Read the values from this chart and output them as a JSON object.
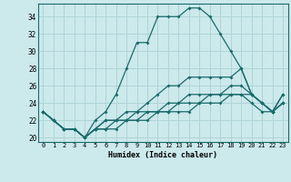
{
  "xlabel": "Humidex (Indice chaleur)",
  "background_color": "#cce9ec",
  "grid_color": "#afd4d8",
  "line_color": "#1a6b6b",
  "xlim": [
    -0.5,
    23.5
  ],
  "ylim": [
    19.5,
    35.5
  ],
  "yticks": [
    20,
    22,
    24,
    26,
    28,
    30,
    32,
    34
  ],
  "xticks": [
    0,
    1,
    2,
    3,
    4,
    5,
    6,
    7,
    8,
    9,
    10,
    11,
    12,
    13,
    14,
    15,
    16,
    17,
    18,
    19,
    20,
    21,
    22,
    23
  ],
  "lines": [
    [
      23,
      22,
      21,
      21,
      20,
      22,
      23,
      25,
      28,
      31,
      31,
      34,
      34,
      34,
      35,
      35,
      34,
      32,
      30,
      28,
      25,
      24,
      23,
      25
    ],
    [
      23,
      22,
      21,
      21,
      20,
      21,
      22,
      22,
      23,
      23,
      24,
      25,
      26,
      26,
      27,
      27,
      27,
      27,
      27,
      28,
      25,
      24,
      23,
      25
    ],
    [
      23,
      22,
      21,
      21,
      20,
      21,
      22,
      22,
      22,
      23,
      23,
      23,
      24,
      24,
      25,
      25,
      25,
      25,
      26,
      26,
      25,
      24,
      23,
      24
    ],
    [
      23,
      22,
      21,
      21,
      20,
      21,
      21,
      22,
      22,
      22,
      23,
      23,
      23,
      24,
      24,
      24,
      25,
      25,
      25,
      25,
      25,
      24,
      23,
      24
    ],
    [
      23,
      22,
      21,
      21,
      20,
      21,
      21,
      21,
      22,
      22,
      22,
      23,
      23,
      23,
      23,
      24,
      24,
      24,
      25,
      25,
      24,
      23,
      23,
      24
    ]
  ]
}
